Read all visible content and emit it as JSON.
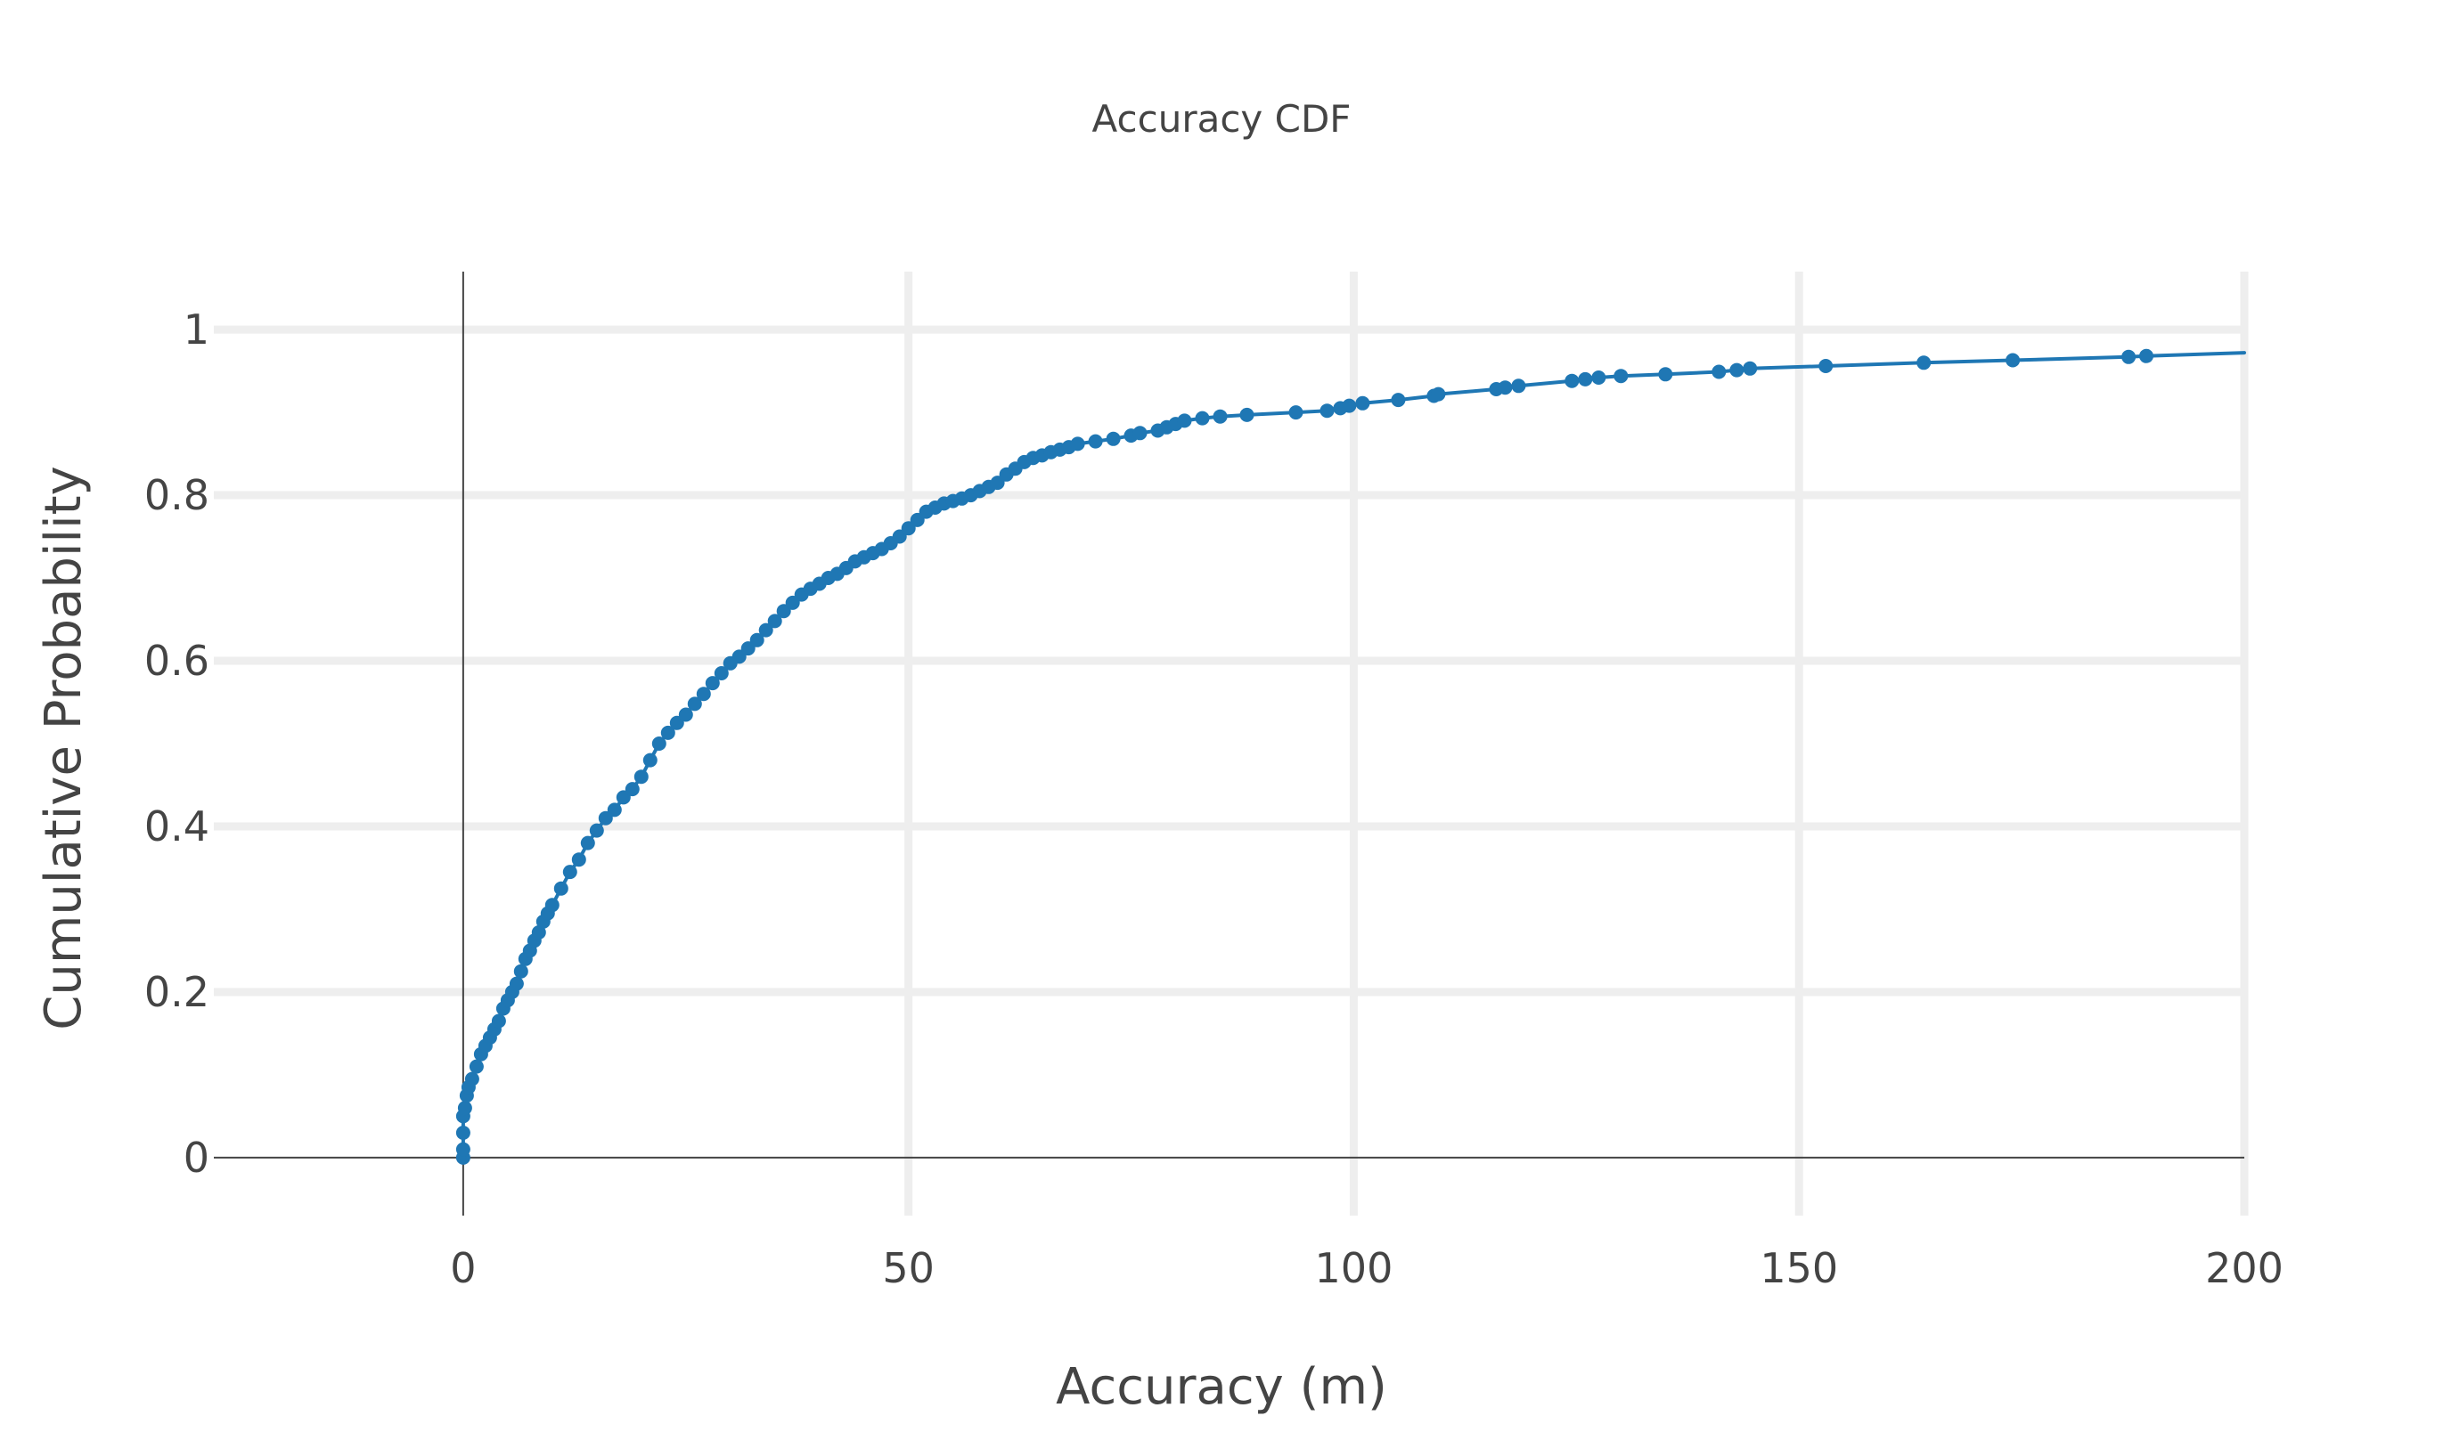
{
  "chart_data": {
    "type": "line",
    "title": "Accuracy CDF",
    "xlabel": "Accuracy (m)",
    "ylabel": "Cumulative Probability",
    "xlim": [
      -28,
      200
    ],
    "ylim": [
      -0.07,
      1.07
    ],
    "x_ticks": [
      0,
      50,
      100,
      150,
      200
    ],
    "x_tick_labels": [
      "0",
      "50",
      "100",
      "150",
      "200"
    ],
    "y_ticks": [
      0,
      0.2,
      0.4,
      0.6,
      0.8,
      1
    ],
    "y_tick_labels": [
      "0",
      "0.2",
      "0.4",
      "0.6",
      "0.8",
      "1"
    ],
    "grid": true,
    "legend": false,
    "colors": {
      "series": "#1f77b4",
      "grid": "#eeeeee",
      "axis": "#444444"
    },
    "series": [
      {
        "mode": "lines+markers",
        "x": [
          0,
          0,
          0,
          0,
          0.2,
          0.4,
          0.6,
          1,
          1.5,
          2,
          2.5,
          3,
          3.5,
          4,
          4.5,
          5,
          5.5,
          6,
          6.5,
          7,
          7.5,
          8,
          8.5,
          9,
          9.5,
          10,
          11,
          12,
          13,
          14,
          15,
          16,
          17,
          18,
          19,
          20,
          21,
          22,
          23,
          24,
          25,
          26,
          27,
          28,
          29,
          30,
          31,
          32,
          33,
          34,
          35,
          36,
          37,
          38,
          39,
          40,
          41,
          42,
          43,
          44,
          45,
          46,
          47,
          48,
          49,
          50,
          51,
          52,
          53,
          54,
          55,
          56,
          57,
          58,
          59,
          60,
          61,
          62,
          63,
          64,
          65,
          66,
          67,
          68,
          69,
          71,
          73,
          75,
          76,
          78,
          79,
          80,
          81,
          83,
          85,
          88,
          93.5,
          97,
          98.5,
          99.5,
          101,
          105,
          109,
          109.5,
          116,
          117,
          118.5,
          124.5,
          126,
          127.5,
          130,
          135,
          141,
          143,
          144.5,
          153,
          164,
          174,
          187,
          189,
          200
        ],
        "y": [
          0,
          0.01,
          0.03,
          0.05,
          0.06,
          0.075,
          0.085,
          0.095,
          0.11,
          0.125,
          0.135,
          0.145,
          0.155,
          0.165,
          0.18,
          0.19,
          0.2,
          0.21,
          0.225,
          0.24,
          0.25,
          0.262,
          0.272,
          0.285,
          0.295,
          0.305,
          0.325,
          0.345,
          0.36,
          0.38,
          0.395,
          0.41,
          0.42,
          0.435,
          0.445,
          0.46,
          0.48,
          0.5,
          0.513,
          0.525,
          0.535,
          0.548,
          0.56,
          0.573,
          0.585,
          0.597,
          0.605,
          0.615,
          0.625,
          0.637,
          0.648,
          0.66,
          0.67,
          0.68,
          0.687,
          0.693,
          0.7,
          0.705,
          0.712,
          0.72,
          0.725,
          0.73,
          0.735,
          0.742,
          0.75,
          0.76,
          0.77,
          0.78,
          0.785,
          0.79,
          0.793,
          0.796,
          0.8,
          0.805,
          0.81,
          0.815,
          0.825,
          0.832,
          0.84,
          0.845,
          0.848,
          0.852,
          0.855,
          0.858,
          0.862,
          0.865,
          0.868,
          0.872,
          0.875,
          0.878,
          0.882,
          0.886,
          0.89,
          0.893,
          0.895,
          0.897,
          0.9,
          0.902,
          0.905,
          0.908,
          0.911,
          0.915,
          0.92,
          0.922,
          0.928,
          0.93,
          0.932,
          0.938,
          0.94,
          0.942,
          0.944,
          0.946,
          0.949,
          0.951,
          0.953,
          0.956,
          0.96,
          0.963,
          0.967,
          0.968,
          0.972
        ]
      }
    ]
  }
}
